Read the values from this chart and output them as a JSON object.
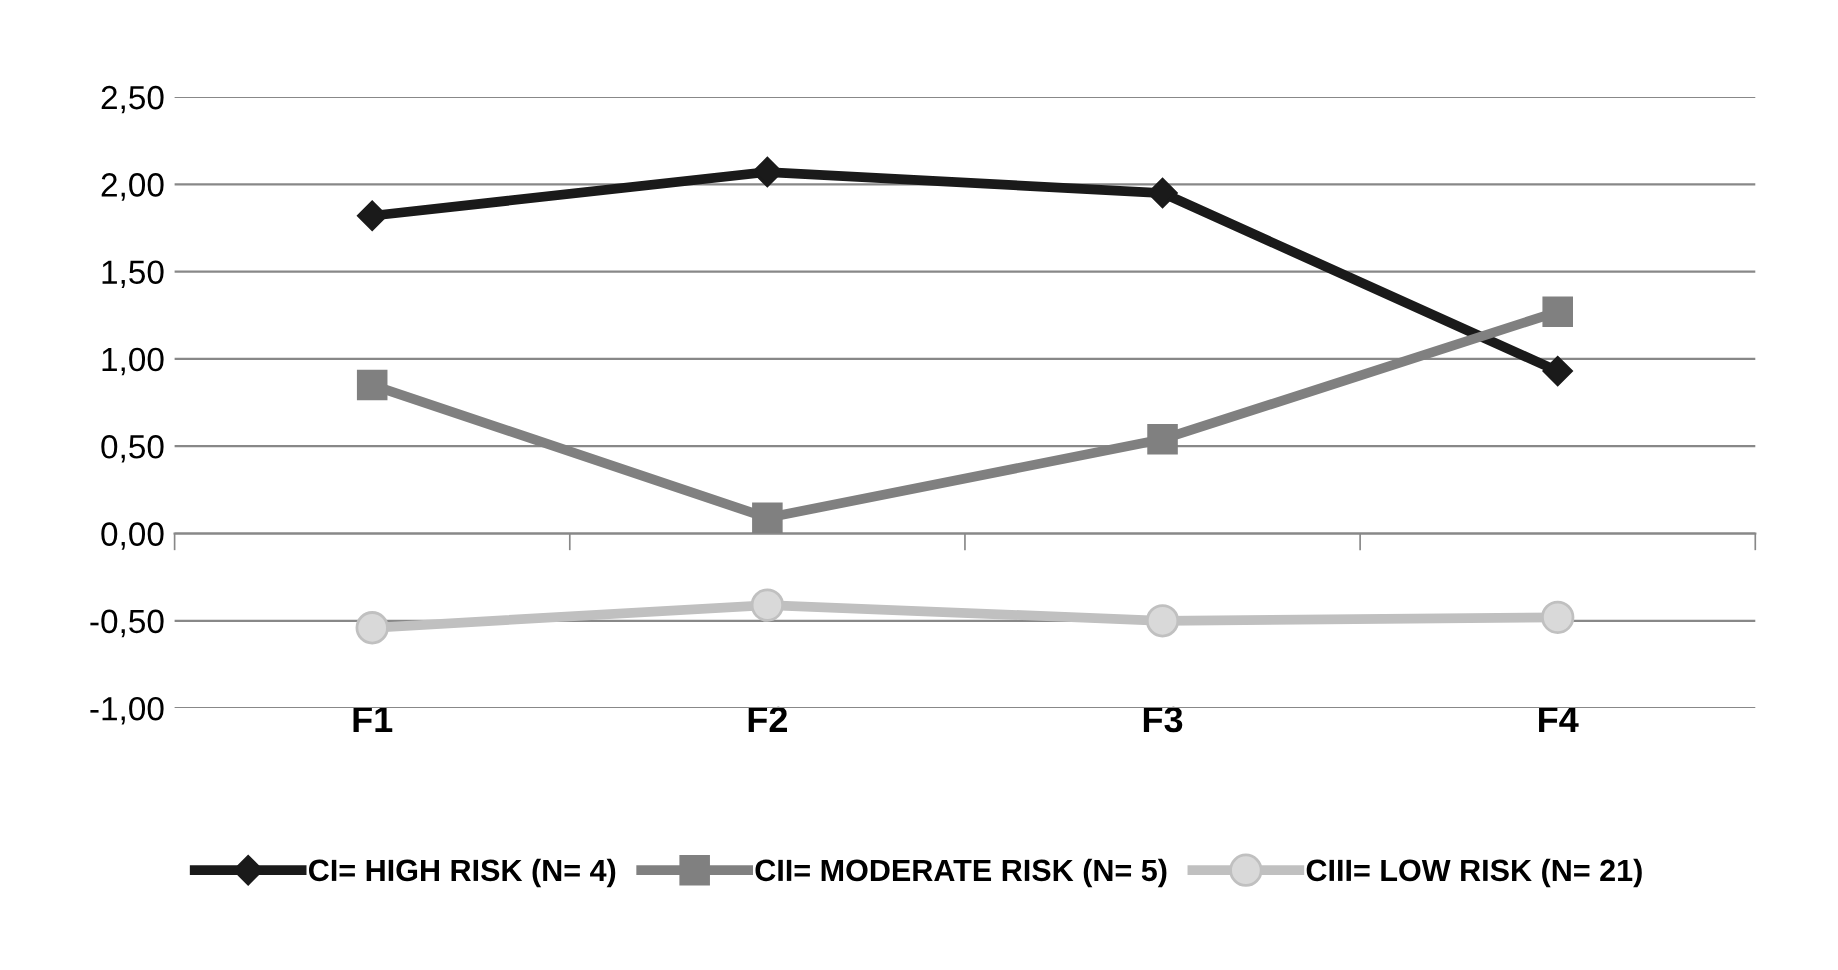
{
  "chart_data": {
    "type": "line",
    "categories": [
      "F1",
      "F2",
      "F3",
      "F4"
    ],
    "series": [
      {
        "name": "CI= HIGH RISK (N= 4)",
        "color": "#1a1a1a",
        "marker": "diamond",
        "values": [
          1.82,
          2.07,
          1.95,
          0.93
        ]
      },
      {
        "name": "CII= MODERATE RISK (N= 5)",
        "color": "#808080",
        "marker": "square",
        "values": [
          0.85,
          0.09,
          0.54,
          1.27
        ]
      },
      {
        "name": "CIII= LOW RISK (N= 21)",
        "color": "#c0c0c0",
        "marker": "circle",
        "values": [
          -0.54,
          -0.41,
          -0.5,
          -0.48
        ]
      }
    ],
    "ylim": [
      -1,
      2.5
    ],
    "yticks": [
      {
        "value": -1,
        "label": "-1,00"
      },
      {
        "value": -0.5,
        "label": "-0,50"
      },
      {
        "value": 0,
        "label": "0,00"
      },
      {
        "value": 0.5,
        "label": "0,50"
      },
      {
        "value": 1,
        "label": "1,00"
      },
      {
        "value": 1.5,
        "label": "1,50"
      },
      {
        "value": 2,
        "label": "2,00"
      },
      {
        "value": 2.5,
        "label": "2,50"
      }
    ],
    "grid": "y",
    "legend": "bottom"
  }
}
